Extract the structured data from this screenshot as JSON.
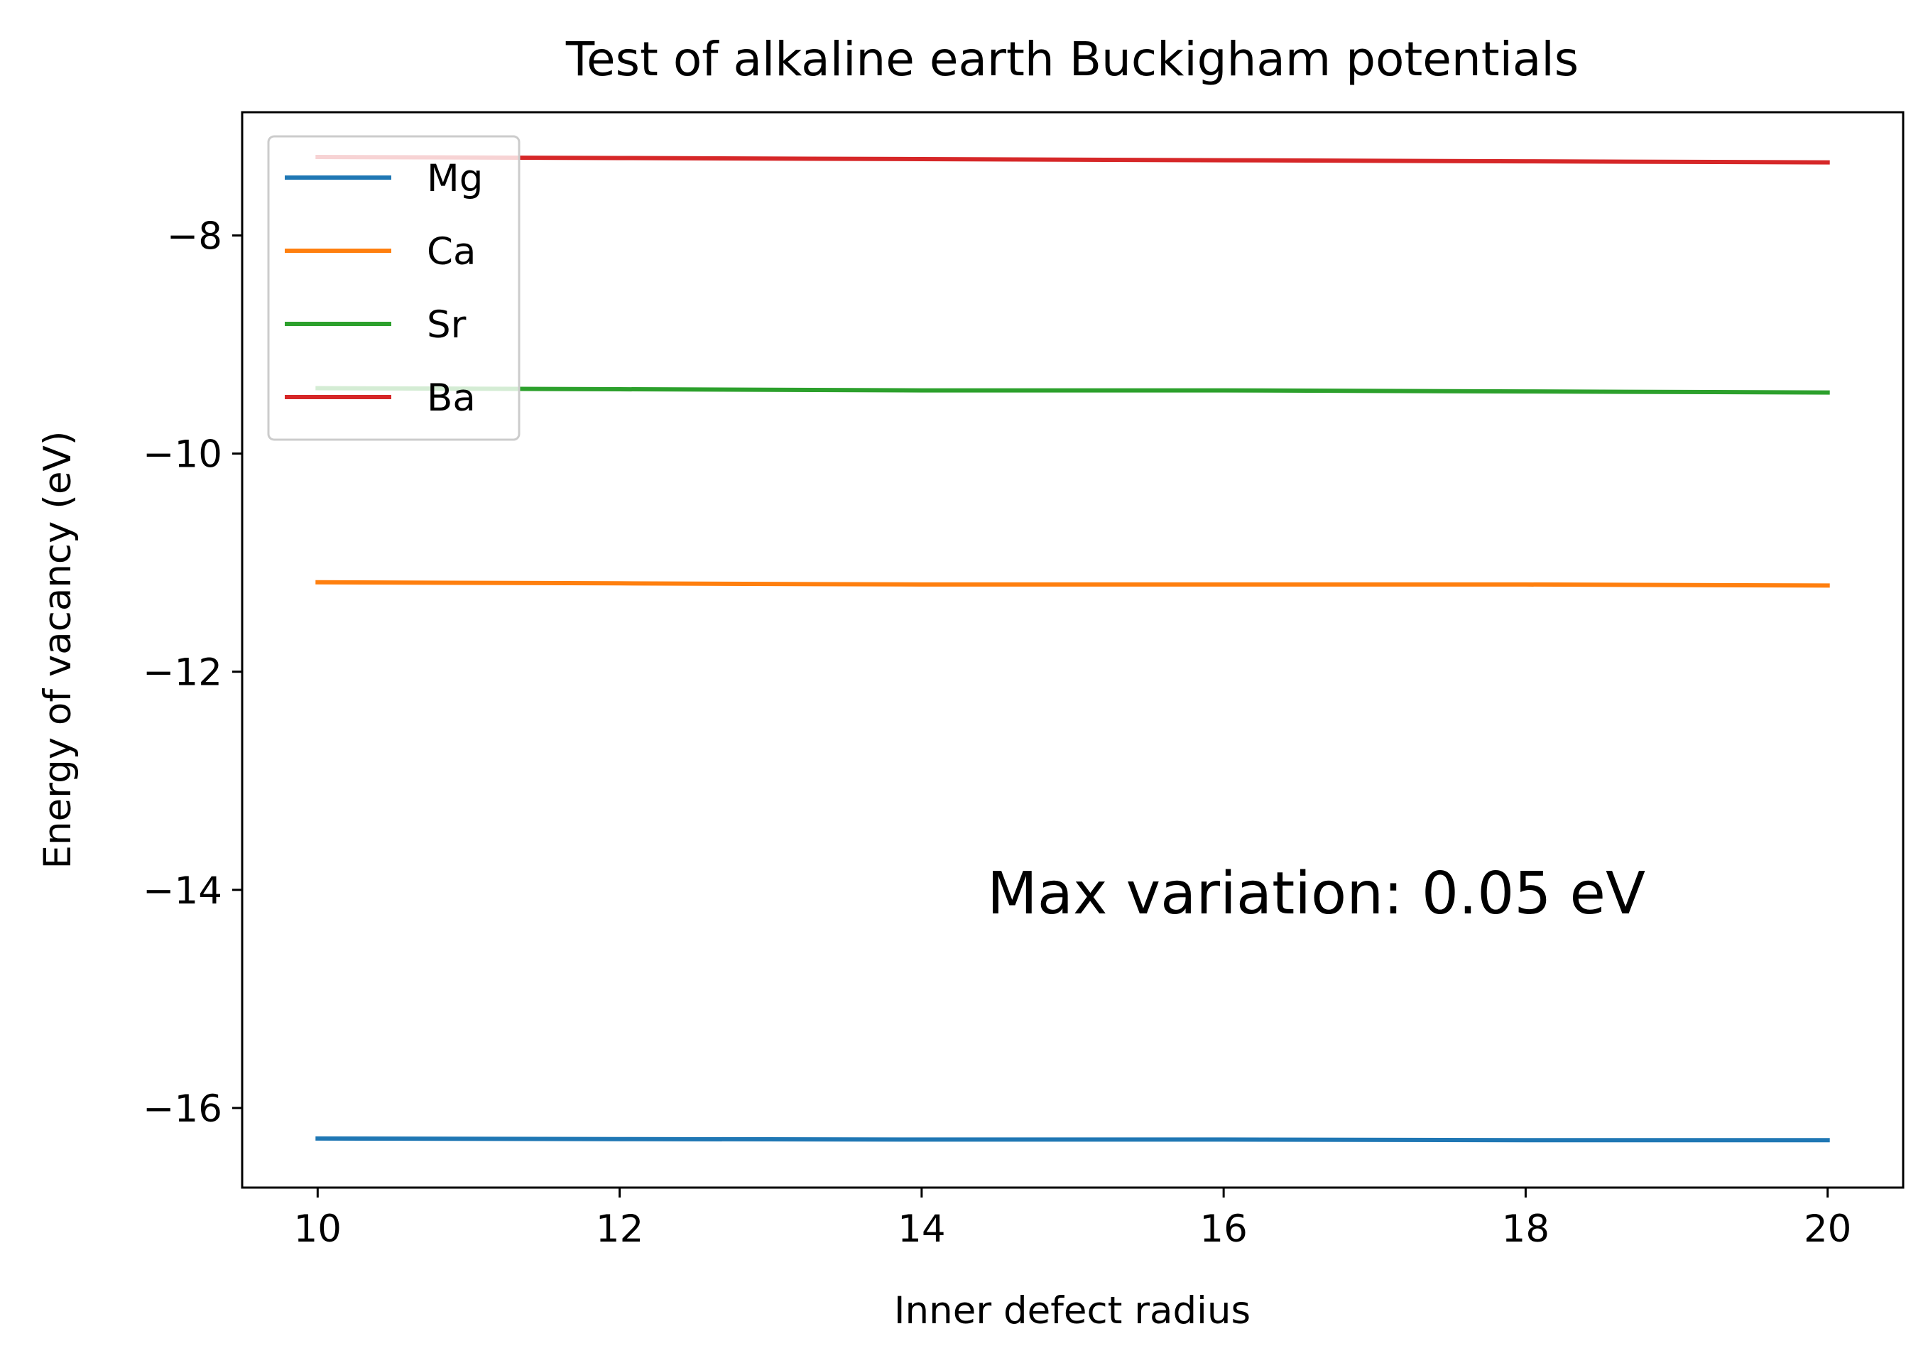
{
  "chart_data": {
    "type": "line",
    "title": "Test of alkaline earth Buckigham potentials",
    "xlabel": "Inner defect radius",
    "ylabel": "Energy of vacancy (eV)",
    "xlim": [
      9.5,
      20.5
    ],
    "ylim": [
      -16.73,
      -6.87
    ],
    "xticks": [
      10,
      12,
      14,
      16,
      18,
      20
    ],
    "xtick_labels": [
      "10",
      "12",
      "14",
      "16",
      "18",
      "20"
    ],
    "yticks": [
      -8,
      -10,
      -12,
      -14,
      -16
    ],
    "ytick_labels": [
      "−8",
      "−10",
      "−12",
      "−14",
      "−16"
    ],
    "grid": false,
    "legend_position": "upper left",
    "annotation": "Max variation: 0.05 eV",
    "series": [
      {
        "name": "Mg",
        "color": "#1f77b4",
        "x": [
          10,
          12,
          14,
          16,
          18,
          20
        ],
        "y": [
          -16.28,
          -16.285,
          -16.29,
          -16.29,
          -16.295,
          -16.295
        ]
      },
      {
        "name": "Ca",
        "color": "#ff7f0e",
        "x": [
          10,
          12,
          14,
          16,
          18,
          20
        ],
        "y": [
          -11.18,
          -11.19,
          -11.2,
          -11.2,
          -11.2,
          -11.21
        ]
      },
      {
        "name": "Sr",
        "color": "#2ca02c",
        "x": [
          10,
          12,
          14,
          16,
          18,
          20
        ],
        "y": [
          -9.4,
          -9.41,
          -9.42,
          -9.42,
          -9.43,
          -9.44
        ]
      },
      {
        "name": "Ba",
        "color": "#d62728",
        "x": [
          10,
          12,
          14,
          16,
          18,
          20
        ],
        "y": [
          -7.28,
          -7.29,
          -7.3,
          -7.31,
          -7.32,
          -7.33
        ]
      }
    ]
  }
}
